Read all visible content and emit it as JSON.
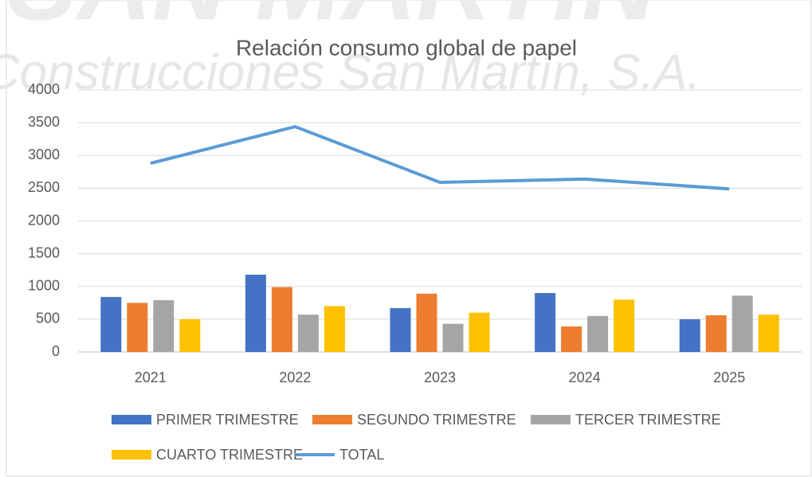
{
  "watermark": [
    "SAN MARTIN",
    "Construcciones San Martín, S.A."
  ],
  "chart_data": {
    "type": "bar",
    "title": "Relación consumo global de papel",
    "categories": [
      "2021",
      "2022",
      "2023",
      "2024",
      "2025"
    ],
    "series": [
      {
        "name": "PRIMER TRIMESTRE",
        "color": "#4472c4",
        "values": [
          840,
          1180,
          670,
          900,
          500
        ]
      },
      {
        "name": "SEGUNDO TRIMESTRE",
        "color": "#ed7d31",
        "values": [
          750,
          990,
          890,
          390,
          560
        ]
      },
      {
        "name": "TERCER TRIMESTRE",
        "color": "#a5a5a5",
        "values": [
          790,
          570,
          430,
          550,
          860
        ]
      },
      {
        "name": "CUARTO TRIMESTRE",
        "color": "#ffc000",
        "values": [
          500,
          700,
          600,
          800,
          570
        ]
      },
      {
        "name": "TOTAL",
        "type": "line",
        "color": "#5b9bd5",
        "values": [
          2880,
          3440,
          2590,
          2640,
          2490
        ]
      }
    ],
    "ylim": [
      0,
      4000
    ],
    "yticks": [
      0,
      500,
      1000,
      1500,
      2000,
      2500,
      3000,
      3500,
      4000
    ],
    "grid": true,
    "legend": "bottom"
  }
}
